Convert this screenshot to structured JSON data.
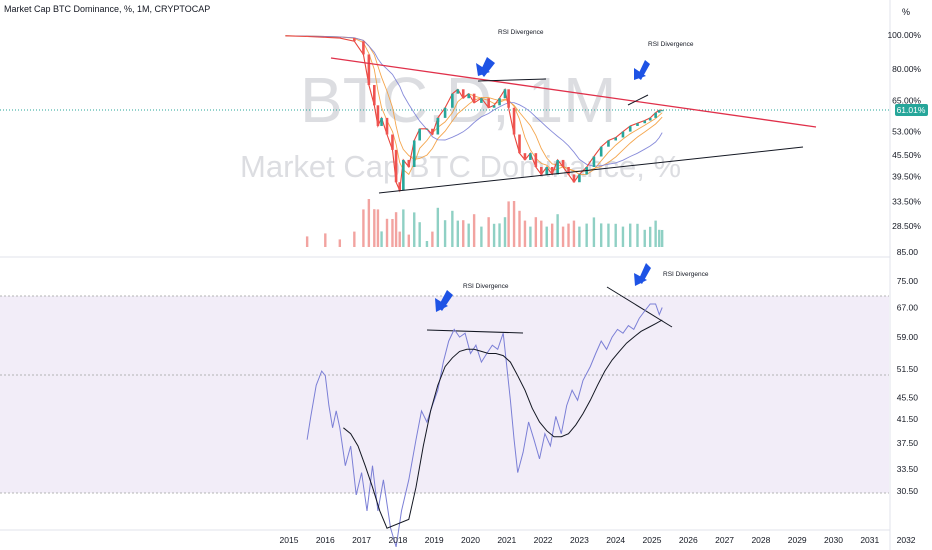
{
  "header": {
    "title": "Market Cap BTC Dominance, %, 1M, CRYPTOCAP",
    "scale_button": "%"
  },
  "watermark": {
    "symbol": "BTC.D, 1M",
    "description": "Market Cap BTC Dominance, %"
  },
  "colors": {
    "price_line": "#e8453c",
    "ma_orange": "#f39c3b",
    "ma_purple": "#7b7fd6",
    "volume_up": "#8fd0c4",
    "volume_down": "#f2a3a0",
    "resistance": "#e0304a",
    "support": "#131722",
    "rsi": "#7e57c2",
    "rsi_band": "#ede7f6",
    "arrow": "#1e53e5",
    "last_price_bg": "#26a69a"
  },
  "chart_data": [
    {
      "type": "line",
      "title": "Market Cap BTC Dominance, %, 1M, CRYPTOCAP",
      "x_ticks": [
        "2015",
        "2016",
        "2017",
        "2018",
        "2019",
        "2020",
        "2021",
        "2022",
        "2023",
        "2024",
        "2025",
        "2026",
        "2027",
        "2028",
        "2029",
        "2030",
        "2031",
        "2032"
      ],
      "y_ticks": [
        "100.00%",
        "80.00%",
        "65.00%",
        "53.00%",
        "45.50%",
        "39.50%",
        "33.50%",
        "28.50%"
      ],
      "last_price_label": "61.01%",
      "scale": "log",
      "series": [
        {
          "values": [
            [
              2014.9,
              99.5
            ],
            [
              2015.5,
              99
            ],
            [
              2016.0,
              98.5
            ],
            [
              2016.4,
              98
            ],
            [
              2016.8,
              96
            ],
            [
              2017.05,
              88
            ],
            [
              2017.2,
              72
            ],
            [
              2017.35,
              63
            ],
            [
              2017.45,
              55
            ],
            [
              2017.55,
              58
            ],
            [
              2017.7,
              52
            ],
            [
              2017.85,
              47
            ],
            [
              2017.95,
              38
            ],
            [
              2018.05,
              36
            ],
            [
              2018.15,
              44
            ],
            [
              2018.3,
              42
            ],
            [
              2018.45,
              50
            ],
            [
              2018.6,
              54
            ],
            [
              2018.8,
              54
            ],
            [
              2018.95,
              52
            ],
            [
              2019.1,
              58
            ],
            [
              2019.3,
              62
            ],
            [
              2019.5,
              68
            ],
            [
              2019.65,
              70
            ],
            [
              2019.8,
              66
            ],
            [
              2019.95,
              68
            ],
            [
              2020.1,
              64
            ],
            [
              2020.3,
              66
            ],
            [
              2020.5,
              62
            ],
            [
              2020.65,
              63
            ],
            [
              2020.8,
              66
            ],
            [
              2020.95,
              70
            ],
            [
              2021.05,
              62
            ],
            [
              2021.2,
              52
            ],
            [
              2021.35,
              46
            ],
            [
              2021.5,
              44
            ],
            [
              2021.65,
              46
            ],
            [
              2021.8,
              42
            ],
            [
              2021.95,
              40
            ],
            [
              2022.1,
              42
            ],
            [
              2022.25,
              40
            ],
            [
              2022.4,
              44
            ],
            [
              2022.55,
              42
            ],
            [
              2022.7,
              40
            ],
            [
              2022.85,
              38
            ],
            [
              2023.0,
              40
            ],
            [
              2023.2,
              42
            ],
            [
              2023.4,
              45
            ],
            [
              2023.6,
              48
            ],
            [
              2023.8,
              50
            ],
            [
              2024.0,
              51
            ],
            [
              2024.2,
              53
            ],
            [
              2024.4,
              55
            ],
            [
              2024.6,
              56
            ],
            [
              2024.8,
              57
            ],
            [
              2024.95,
              58
            ],
            [
              2025.1,
              60
            ],
            [
              2025.2,
              61
            ],
            [
              2025.28,
              61.01
            ]
          ]
        }
      ],
      "annotations": [
        "RSI Divergence",
        "RSI Divergence"
      ]
    },
    {
      "type": "line",
      "y_ticks": [
        "85.00",
        "75.00",
        "67.00",
        "59.00",
        "51.50",
        "45.50",
        "41.50",
        "37.50",
        "33.50",
        "30.50"
      ],
      "annotations": [
        "RSI Divergence",
        "RSI Divergence"
      ],
      "series": [
        {
          "values": [
            [
              2015.5,
              38
            ],
            [
              2015.6,
              42
            ],
            [
              2015.75,
              48
            ],
            [
              2015.9,
              51
            ],
            [
              2016.0,
              50
            ],
            [
              2016.1,
              44
            ],
            [
              2016.2,
              40
            ],
            [
              2016.3,
              43
            ],
            [
              2016.4,
              40
            ],
            [
              2016.55,
              34
            ],
            [
              2016.7,
              37
            ],
            [
              2016.85,
              30
            ],
            [
              2017.0,
              33
            ],
            [
              2017.15,
              28
            ],
            [
              2017.3,
              34
            ],
            [
              2017.45,
              28
            ],
            [
              2017.6,
              32
            ],
            [
              2017.8,
              26
            ],
            [
              2017.95,
              24
            ],
            [
              2018.1,
              28
            ],
            [
              2018.3,
              32
            ],
            [
              2018.5,
              38
            ],
            [
              2018.65,
              43
            ],
            [
              2018.8,
              41
            ],
            [
              2018.95,
              44
            ],
            [
              2019.1,
              47
            ],
            [
              2019.25,
              53
            ],
            [
              2019.4,
              58
            ],
            [
              2019.55,
              61
            ],
            [
              2019.7,
              59
            ],
            [
              2019.85,
              60
            ],
            [
              2020.0,
              55
            ],
            [
              2020.15,
              57
            ],
            [
              2020.3,
              53
            ],
            [
              2020.45,
              55
            ],
            [
              2020.6,
              57
            ],
            [
              2020.75,
              56
            ],
            [
              2020.9,
              60
            ],
            [
              2021.0,
              52
            ],
            [
              2021.1,
              45
            ],
            [
              2021.2,
              38
            ],
            [
              2021.3,
              33
            ],
            [
              2021.45,
              36
            ],
            [
              2021.6,
              41
            ],
            [
              2021.75,
              38
            ],
            [
              2021.9,
              35
            ],
            [
              2022.05,
              39
            ],
            [
              2022.2,
              37
            ],
            [
              2022.35,
              42
            ],
            [
              2022.5,
              39
            ],
            [
              2022.65,
              44
            ],
            [
              2022.8,
              47
            ],
            [
              2022.95,
              45
            ],
            [
              2023.1,
              49
            ],
            [
              2023.3,
              52
            ],
            [
              2023.45,
              55
            ],
            [
              2023.6,
              58
            ],
            [
              2023.75,
              56
            ],
            [
              2023.9,
              59
            ],
            [
              2024.05,
              61
            ],
            [
              2024.2,
              60
            ],
            [
              2024.35,
              62
            ],
            [
              2024.5,
              61
            ],
            [
              2024.65,
              64
            ],
            [
              2024.8,
              66
            ],
            [
              2024.95,
              68
            ],
            [
              2025.1,
              68
            ],
            [
              2025.2,
              65
            ],
            [
              2025.28,
              67
            ]
          ]
        },
        {
          "values": [
            [
              2016.5,
              40
            ],
            [
              2016.7,
              39
            ],
            [
              2016.9,
              37
            ],
            [
              2017.1,
              34
            ],
            [
              2017.3,
              31
            ],
            [
              2017.5,
              28
            ],
            [
              2017.7,
              26
            ],
            [
              2018.3,
              27
            ],
            [
              2018.5,
              31
            ],
            [
              2018.7,
              37
            ],
            [
              2018.9,
              43
            ],
            [
              2019.1,
              48
            ],
            [
              2019.3,
              52
            ],
            [
              2019.5,
              54
            ],
            [
              2019.7,
              55.5
            ],
            [
              2019.9,
              56
            ],
            [
              2020.1,
              56
            ],
            [
              2020.3,
              55.5
            ],
            [
              2020.5,
              55
            ],
            [
              2020.7,
              55
            ],
            [
              2020.9,
              54.5
            ],
            [
              2021.1,
              53
            ],
            [
              2021.3,
              50
            ],
            [
              2021.5,
              47
            ],
            [
              2021.7,
              43.5
            ],
            [
              2021.9,
              41
            ],
            [
              2022.1,
              39.5
            ],
            [
              2022.3,
              38.5
            ],
            [
              2022.5,
              38.5
            ],
            [
              2022.7,
              39
            ],
            [
              2022.9,
              40.5
            ],
            [
              2023.1,
              42.5
            ],
            [
              2023.3,
              45
            ],
            [
              2023.5,
              48
            ],
            [
              2023.7,
              51
            ],
            [
              2023.9,
              53.5
            ],
            [
              2024.1,
              55.5
            ],
            [
              2024.3,
              57.5
            ],
            [
              2024.5,
              59
            ],
            [
              2024.7,
              60.5
            ],
            [
              2024.9,
              61.5
            ],
            [
              2025.1,
              62.5
            ],
            [
              2025.28,
              63.5
            ]
          ]
        }
      ]
    }
  ]
}
